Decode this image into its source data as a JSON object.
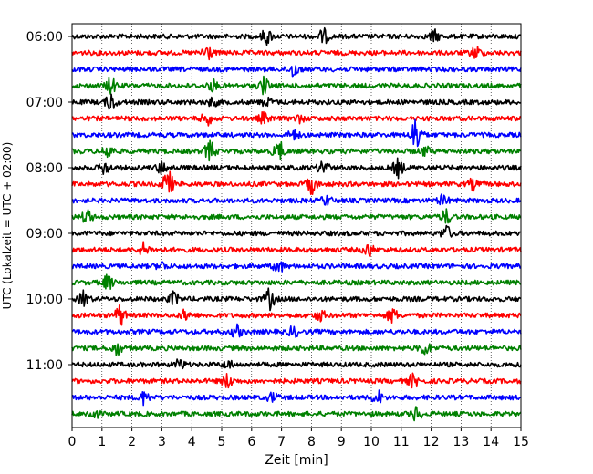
{
  "chart_data": {
    "type": "line",
    "title": "",
    "xlabel": "Zeit  [min]",
    "ylabel": "UTC (Lokalzeit = UTC + 02:00)",
    "xlim": [
      0,
      15
    ],
    "x_ticks": [
      "0",
      "1",
      "2",
      "3",
      "4",
      "5",
      "6",
      "7",
      "8",
      "9",
      "10",
      "11",
      "12",
      "13",
      "14",
      "15"
    ],
    "y_tick_labels": [
      "06:00",
      "07:00",
      "08:00",
      "09:00",
      "10:00",
      "11:00"
    ],
    "grid": "vertical dotted at each minute",
    "legend": "none",
    "trace_colors_cycle": [
      "#000000",
      "#ff0000",
      "#0000ff",
      "#008000"
    ],
    "series": [
      {
        "start": "06:00",
        "color": "#000000",
        "events": [
          [
            6.5,
            1.2
          ],
          [
            8.4,
            1.1
          ],
          [
            12.1,
            0.9
          ]
        ]
      },
      {
        "start": "06:15",
        "color": "#ff0000",
        "events": [
          [
            4.5,
            1.4
          ],
          [
            13.5,
            1.0
          ]
        ]
      },
      {
        "start": "06:30",
        "color": "#0000ff",
        "events": [
          [
            7.4,
            1.3
          ]
        ]
      },
      {
        "start": "06:45",
        "color": "#008000",
        "events": [
          [
            1.3,
            1.2
          ],
          [
            4.7,
            0.8
          ],
          [
            6.4,
            1.3
          ]
        ]
      },
      {
        "start": "07:00",
        "color": "#000000",
        "events": [
          [
            1.3,
            1.4
          ],
          [
            4.7,
            0.6
          ],
          [
            6.5,
            0.6
          ]
        ]
      },
      {
        "start": "07:15",
        "color": "#ff0000",
        "events": [
          [
            4.5,
            1.0
          ],
          [
            6.4,
            0.8
          ],
          [
            7.6,
            0.5
          ]
        ]
      },
      {
        "start": "07:30",
        "color": "#0000ff",
        "events": [
          [
            7.4,
            0.8
          ],
          [
            11.5,
            3.0
          ]
        ]
      },
      {
        "start": "07:45",
        "color": "#008000",
        "events": [
          [
            1.2,
            1.2
          ],
          [
            4.6,
            1.6
          ],
          [
            6.9,
            1.7
          ],
          [
            11.8,
            0.7
          ]
        ]
      },
      {
        "start": "08:00",
        "color": "#000000",
        "events": [
          [
            1.1,
            1.0
          ],
          [
            3.0,
            0.9
          ],
          [
            8.4,
            1.2
          ],
          [
            10.9,
            1.4
          ]
        ]
      },
      {
        "start": "08:15",
        "color": "#ff0000",
        "events": [
          [
            3.2,
            2.2
          ],
          [
            8.0,
            1.4
          ],
          [
            13.4,
            0.8
          ]
        ]
      },
      {
        "start": "08:30",
        "color": "#0000ff",
        "events": [
          [
            8.5,
            0.7
          ],
          [
            12.4,
            0.8
          ]
        ]
      },
      {
        "start": "08:45",
        "color": "#008000",
        "events": [
          [
            0.5,
            1.0
          ],
          [
            12.5,
            1.1
          ]
        ]
      },
      {
        "start": "09:00",
        "color": "#000000",
        "events": [
          [
            12.5,
            1.1
          ]
        ]
      },
      {
        "start": "09:15",
        "color": "#ff0000",
        "events": [
          [
            2.4,
            1.0
          ],
          [
            9.9,
            1.0
          ]
        ]
      },
      {
        "start": "09:30",
        "color": "#0000ff",
        "events": [
          [
            3.0,
            0.6
          ],
          [
            6.9,
            1.0
          ]
        ]
      },
      {
        "start": "09:45",
        "color": "#008000",
        "events": [
          [
            1.2,
            1.2
          ]
        ]
      },
      {
        "start": "10:00",
        "color": "#000000",
        "events": [
          [
            0.4,
            1.2
          ],
          [
            3.4,
            1.0
          ],
          [
            6.6,
            1.6
          ]
        ]
      },
      {
        "start": "10:15",
        "color": "#ff0000",
        "events": [
          [
            1.6,
            1.6
          ],
          [
            3.8,
            0.8
          ],
          [
            8.3,
            0.8
          ],
          [
            10.7,
            1.1
          ]
        ]
      },
      {
        "start": "10:30",
        "color": "#0000ff",
        "events": [
          [
            5.5,
            1.0
          ],
          [
            7.4,
            0.8
          ]
        ]
      },
      {
        "start": "10:45",
        "color": "#008000",
        "events": [
          [
            1.5,
            1.0
          ],
          [
            11.8,
            1.0
          ]
        ]
      },
      {
        "start": "11:00",
        "color": "#000000",
        "events": [
          [
            3.6,
            0.8
          ],
          [
            5.2,
            0.6
          ]
        ]
      },
      {
        "start": "11:15",
        "color": "#ff0000",
        "events": [
          [
            5.2,
            1.1
          ],
          [
            11.4,
            1.0
          ]
        ]
      },
      {
        "start": "11:30",
        "color": "#0000ff",
        "events": [
          [
            2.4,
            1.0
          ],
          [
            6.7,
            0.7
          ],
          [
            10.2,
            1.1
          ]
        ]
      },
      {
        "start": "11:45",
        "color": "#008000",
        "events": [
          [
            0.7,
            1.0
          ],
          [
            11.5,
            1.1
          ]
        ]
      }
    ]
  }
}
